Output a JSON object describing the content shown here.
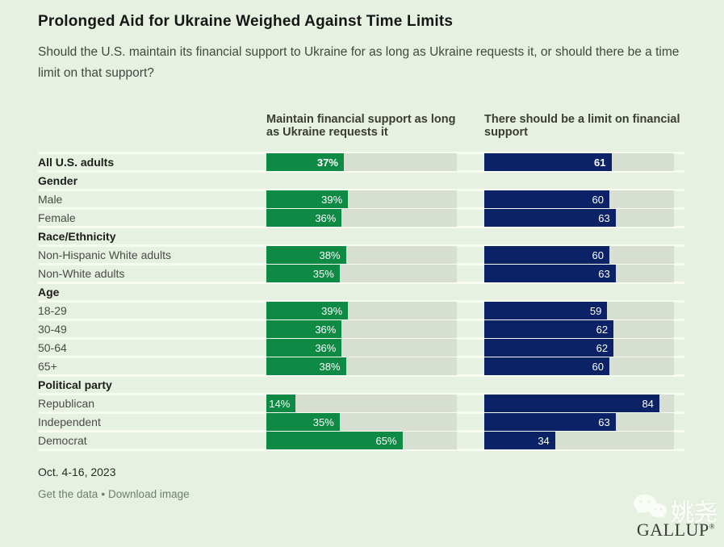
{
  "page": {
    "title": "Prolonged Aid for Ukraine Weighed Against Time Limits",
    "subtitle": "Should the U.S. maintain its financial support to Ukraine for as long as Ukraine requests it, or should there be a time limit on that support?",
    "date": "Oct. 4-16, 2023",
    "links": {
      "get_data": "Get the data",
      "bullet": "•",
      "download": "Download image"
    },
    "brand": "GALLUP",
    "brand_mark": "®",
    "watermark_text": "姚尧"
  },
  "colors": {
    "background": "#e7f1e1",
    "row_separator": "#f7fbf2",
    "bar_track": "#d6dfd1",
    "maintain_green": "#0e8a45",
    "limit_navy": "#0b2366",
    "link_text": "#6e7f6c"
  },
  "chart_data": {
    "type": "bar",
    "title": "Prolonged Aid for Ukraine Weighed Against Time Limits",
    "question": "Should the U.S. maintain its financial support to Ukraine for as long as Ukraine requests it, or should there be a time limit on that support?",
    "scale_max": 91,
    "legend_position": "column headers above bars",
    "series": [
      {
        "name": "Maintain financial support as long as Ukraine requests it",
        "color": "#0e8a45",
        "value_suffix": "%"
      },
      {
        "name": "There should be a limit on financial support",
        "color": "#0b2366",
        "value_suffix": ""
      }
    ],
    "rows": [
      {
        "kind": "data",
        "label": "All U.S. adults",
        "emphasis": true,
        "values": [
          37,
          61
        ],
        "value_labels": [
          "37%",
          "61"
        ]
      },
      {
        "kind": "group",
        "label": "Gender"
      },
      {
        "kind": "data",
        "label": "Male",
        "values": [
          39,
          60
        ],
        "value_labels": [
          "39%",
          "60"
        ]
      },
      {
        "kind": "data",
        "label": "Female",
        "values": [
          36,
          63
        ],
        "value_labels": [
          "36%",
          "63"
        ]
      },
      {
        "kind": "group",
        "label": "Race/Ethnicity"
      },
      {
        "kind": "data",
        "label": "Non-Hispanic White adults",
        "values": [
          38,
          60
        ],
        "value_labels": [
          "38%",
          "60"
        ]
      },
      {
        "kind": "data",
        "label": "Non-White adults",
        "values": [
          35,
          63
        ],
        "value_labels": [
          "35%",
          "63"
        ]
      },
      {
        "kind": "group",
        "label": "Age"
      },
      {
        "kind": "data",
        "label": "18-29",
        "values": [
          39,
          59
        ],
        "value_labels": [
          "39%",
          "59"
        ]
      },
      {
        "kind": "data",
        "label": "30-49",
        "values": [
          36,
          62
        ],
        "value_labels": [
          "36%",
          "62"
        ]
      },
      {
        "kind": "data",
        "label": "50-64",
        "values": [
          36,
          62
        ],
        "value_labels": [
          "36%",
          "62"
        ]
      },
      {
        "kind": "data",
        "label": "65+",
        "values": [
          38,
          60
        ],
        "value_labels": [
          "38%",
          "60"
        ]
      },
      {
        "kind": "group",
        "label": "Political party"
      },
      {
        "kind": "data",
        "label": "Republican",
        "values": [
          14,
          84
        ],
        "value_labels": [
          "14%",
          "84"
        ]
      },
      {
        "kind": "data",
        "label": "Independent",
        "values": [
          35,
          63
        ],
        "value_labels": [
          "35%",
          "63"
        ]
      },
      {
        "kind": "data",
        "label": "Democrat",
        "values": [
          65,
          34
        ],
        "value_labels": [
          "65%",
          "34"
        ]
      }
    ]
  }
}
